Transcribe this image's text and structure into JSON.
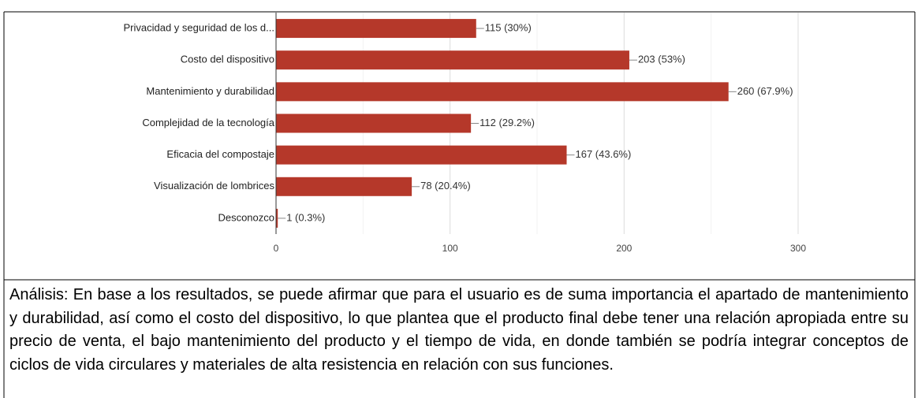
{
  "chart_data": {
    "type": "bar",
    "orientation": "horizontal",
    "categories": [
      "Privacidad y seguridad de los d...",
      "Costo del dispositivo",
      "Mantenimiento y durabilidad",
      "Complejidad de la tecnología",
      "Eficacia del compostaje",
      "Visualización de lombrices",
      "Desconozco"
    ],
    "values": [
      115,
      203,
      260,
      112,
      167,
      78,
      1
    ],
    "value_labels": [
      "115 (30%)",
      "203 (53%)",
      "260 (67.9%)",
      "112 (29.2%)",
      "167 (43.6%)",
      "78 (20.4%)",
      "1 (0.3%)"
    ],
    "color": "#b5382a",
    "xlim": [
      0,
      300
    ],
    "xticks": [
      0,
      100,
      200,
      300
    ],
    "grid": true
  },
  "analysis": "Análisis: En base a los resultados, se puede afirmar que para el usuario es de suma importancia el apartado de mantenimiento y durabilidad, así como el costo del dispositivo, lo que plantea que el producto final debe tener una relación apropiada entre su precio de venta, el bajo mantenimiento del producto y el tiempo de vida, en donde también se podría integrar conceptos de ciclos de vida circulares y materiales de alta resistencia en relación con sus funciones."
}
